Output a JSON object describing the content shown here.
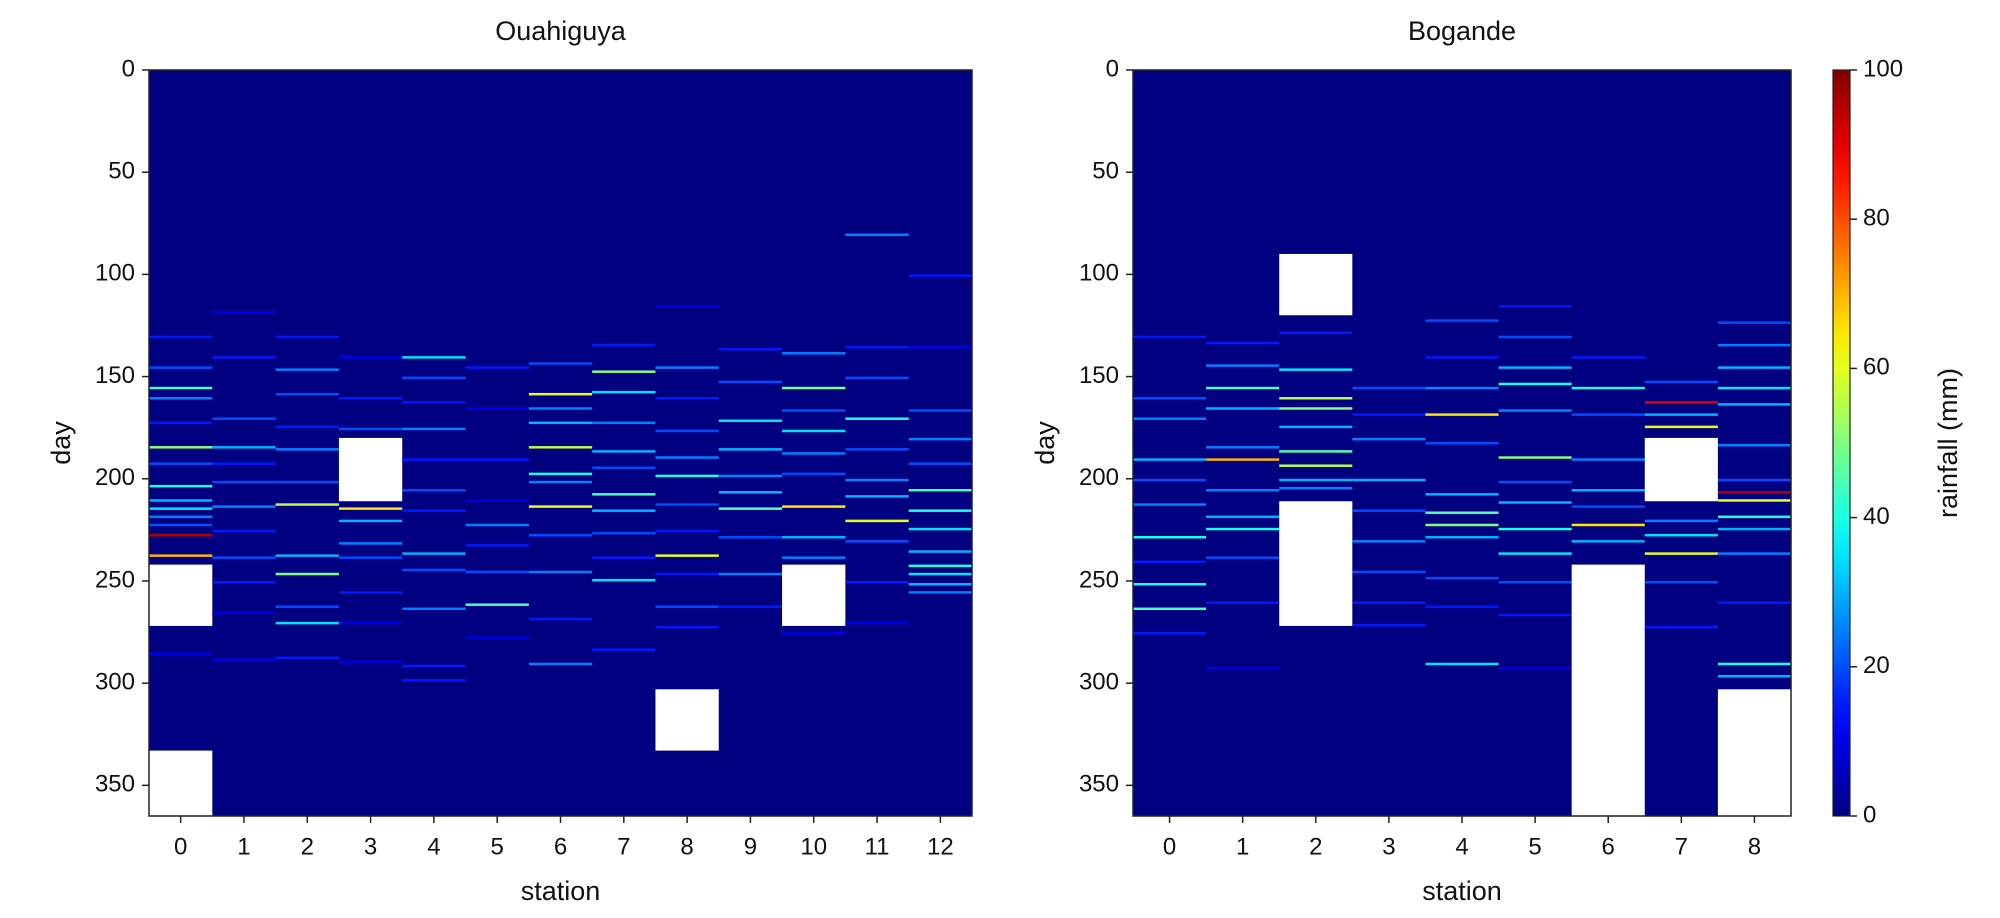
{
  "chart_data": [
    {
      "type": "heatmap",
      "title": "Ouahiguya",
      "xlabel": "station",
      "ylabel": "day",
      "xlim": [
        -0.5,
        12.5
      ],
      "xticks": [
        0,
        1,
        2,
        3,
        4,
        5,
        6,
        7,
        8,
        9,
        10,
        11,
        12
      ],
      "ylim": [
        0,
        365
      ],
      "yticks": [
        0,
        50,
        100,
        150,
        200,
        250,
        300,
        350
      ],
      "colormap": "jet",
      "clim": [
        0,
        100
      ],
      "stations": [
        {
          "days": [
            130,
            145,
            155,
            160,
            172,
            184,
            192,
            203,
            210,
            214,
            218,
            222,
            227,
            237,
            250,
            285
          ],
          "values": [
            15,
            20,
            45,
            25,
            15,
            50,
            20,
            40,
            30,
            35,
            25,
            20,
            95,
            70,
            15,
            10
          ],
          "missing": [
            [
              242,
              272
            ],
            [
              333,
              365
            ]
          ]
        },
        {
          "days": [
            118,
            140,
            170,
            184,
            192,
            201,
            213,
            225,
            238,
            250,
            265,
            288
          ],
          "values": [
            10,
            15,
            20,
            30,
            15,
            20,
            25,
            15,
            20,
            15,
            10,
            10
          ],
          "missing": []
        },
        {
          "days": [
            130,
            146,
            158,
            174,
            185,
            201,
            212,
            237,
            246,
            262,
            270,
            287
          ],
          "values": [
            15,
            25,
            20,
            15,
            25,
            20,
            55,
            30,
            50,
            20,
            35,
            15
          ],
          "missing": []
        },
        {
          "days": [
            140,
            160,
            175,
            214,
            220,
            231,
            238,
            255,
            270,
            289
          ],
          "values": [
            10,
            15,
            20,
            65,
            30,
            25,
            20,
            15,
            10,
            10
          ],
          "missing": [
            [
              180,
              211
            ]
          ]
        },
        {
          "days": [
            140,
            150,
            162,
            175,
            190,
            205,
            215,
            236,
            244,
            263,
            291,
            298
          ],
          "values": [
            35,
            20,
            15,
            25,
            15,
            20,
            15,
            30,
            20,
            25,
            15,
            15
          ],
          "missing": []
        },
        {
          "days": [
            145,
            165,
            190,
            210,
            222,
            232,
            245,
            261,
            277
          ],
          "values": [
            15,
            10,
            15,
            10,
            25,
            15,
            20,
            45,
            10
          ],
          "missing": []
        },
        {
          "days": [
            143,
            158,
            165,
            172,
            184,
            197,
            201,
            213,
            227,
            245,
            268,
            290
          ],
          "values": [
            20,
            60,
            25,
            30,
            55,
            40,
            25,
            60,
            20,
            25,
            15,
            25
          ],
          "missing": []
        },
        {
          "days": [
            134,
            147,
            157,
            172,
            186,
            194,
            207,
            215,
            226,
            238,
            249,
            283
          ],
          "values": [
            15,
            50,
            35,
            25,
            30,
            20,
            45,
            30,
            20,
            15,
            35,
            15
          ],
          "missing": []
        },
        {
          "days": [
            115,
            145,
            160,
            176,
            189,
            198,
            212,
            225,
            237,
            246,
            262,
            272
          ],
          "values": [
            10,
            25,
            15,
            20,
            25,
            40,
            20,
            15,
            60,
            15,
            20,
            15
          ],
          "missing": [
            [
              303,
              333
            ]
          ]
        },
        {
          "days": [
            136,
            152,
            171,
            185,
            198,
            206,
            214,
            228,
            246,
            262
          ],
          "values": [
            15,
            20,
            35,
            30,
            25,
            30,
            45,
            20,
            25,
            15
          ],
          "missing": []
        },
        {
          "days": [
            138,
            155,
            166,
            176,
            187,
            197,
            213,
            228,
            238,
            275
          ],
          "values": [
            25,
            50,
            20,
            35,
            25,
            20,
            65,
            30,
            25,
            10
          ],
          "missing": [
            [
              242,
              272
            ]
          ]
        },
        {
          "days": [
            80,
            135,
            150,
            170,
            185,
            200,
            208,
            220,
            230,
            250,
            270
          ],
          "values": [
            25,
            15,
            20,
            40,
            20,
            25,
            30,
            60,
            20,
            15,
            10
          ],
          "missing": []
        },
        {
          "days": [
            100,
            135,
            166,
            180,
            192,
            205,
            215,
            224,
            235,
            242,
            246,
            251,
            255
          ],
          "values": [
            15,
            10,
            20,
            25,
            20,
            45,
            40,
            35,
            30,
            40,
            35,
            30,
            25
          ],
          "missing": []
        }
      ]
    },
    {
      "type": "heatmap",
      "title": "Bogande",
      "xlabel": "station",
      "ylabel": "day",
      "xlim": [
        -0.5,
        8.5
      ],
      "xticks": [
        0,
        1,
        2,
        3,
        4,
        5,
        6,
        7,
        8
      ],
      "ylim": [
        0,
        365
      ],
      "yticks": [
        0,
        50,
        100,
        150,
        200,
        250,
        300,
        350
      ],
      "colormap": "jet",
      "clim": [
        0,
        100
      ],
      "colorbar": {
        "label": "rainfall (mm)",
        "ticks": [
          0,
          20,
          40,
          60,
          80,
          100
        ]
      },
      "stations": [
        {
          "days": [
            130,
            160,
            170,
            190,
            200,
            212,
            228,
            240,
            251,
            263,
            275
          ],
          "values": [
            15,
            20,
            25,
            30,
            20,
            25,
            40,
            15,
            40,
            45,
            15
          ],
          "missing": []
        },
        {
          "days": [
            133,
            144,
            155,
            165,
            184,
            190,
            205,
            218,
            224,
            238,
            260,
            292
          ],
          "values": [
            15,
            25,
            45,
            30,
            25,
            70,
            25,
            30,
            40,
            20,
            15,
            10
          ],
          "missing": []
        },
        {
          "days": [
            128,
            146,
            160,
            165,
            174,
            186,
            193,
            200,
            204
          ],
          "values": [
            15,
            35,
            55,
            50,
            30,
            45,
            55,
            30,
            25
          ],
          "missing": [
            [
              90,
              120
            ],
            [
              211,
              272
            ]
          ]
        },
        {
          "days": [
            155,
            168,
            180,
            200,
            215,
            230,
            245,
            260,
            271
          ],
          "values": [
            20,
            15,
            25,
            30,
            20,
            25,
            20,
            15,
            15
          ],
          "missing": []
        },
        {
          "days": [
            122,
            140,
            155,
            168,
            182,
            207,
            216,
            222,
            228,
            248,
            262,
            290
          ],
          "values": [
            20,
            15,
            25,
            65,
            20,
            30,
            45,
            50,
            30,
            20,
            15,
            35
          ],
          "missing": []
        },
        {
          "days": [
            115,
            130,
            145,
            153,
            166,
            189,
            201,
            211,
            224,
            236,
            250,
            266,
            292
          ],
          "values": [
            15,
            20,
            30,
            40,
            25,
            50,
            20,
            30,
            40,
            35,
            20,
            15,
            10
          ],
          "missing": []
        },
        {
          "days": [
            140,
            155,
            168,
            190,
            205,
            213,
            222,
            230
          ],
          "values": [
            15,
            40,
            20,
            25,
            30,
            20,
            65,
            30
          ],
          "missing": [
            [
              242,
              365
            ]
          ]
        },
        {
          "days": [
            152,
            162,
            168,
            174,
            220,
            227,
            236,
            250,
            272
          ],
          "values": [
            20,
            90,
            30,
            60,
            25,
            35,
            60,
            20,
            15
          ],
          "missing": [
            [
              180,
              211
            ]
          ]
        },
        {
          "days": [
            123,
            134,
            145,
            155,
            163,
            183,
            200,
            206,
            210,
            218,
            224,
            236,
            260,
            290,
            296
          ],
          "values": [
            20,
            25,
            30,
            35,
            30,
            25,
            20,
            95,
            60,
            40,
            30,
            25,
            15,
            40,
            30
          ],
          "missing": [
            [
              303,
              365
            ]
          ]
        }
      ]
    }
  ]
}
